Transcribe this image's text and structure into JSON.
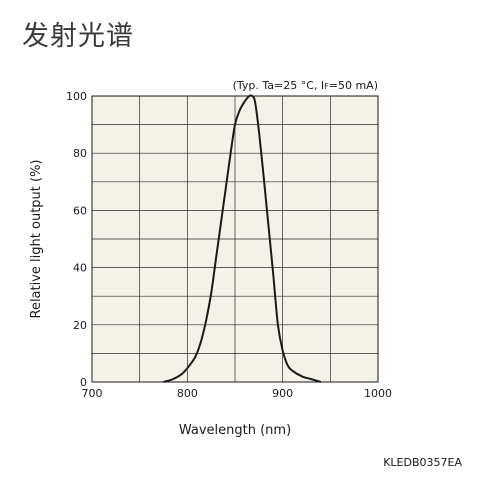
{
  "page": {
    "title": "发射光谱",
    "figure_code": "KLEDB0357EA"
  },
  "chart_data": {
    "type": "line",
    "title": "发射光谱",
    "annotation": {
      "prefix": "(Typ. Ta=25 °C, I",
      "sub": "F",
      "suffix": "=50 mA)"
    },
    "xlabel": "Wavelength (nm)",
    "ylabel": "Relative light output (%)",
    "xlim": [
      700,
      1000
    ],
    "ylim": [
      0,
      100
    ],
    "xticks": [
      700,
      800,
      900,
      1000
    ],
    "yticks": [
      0,
      20,
      40,
      60,
      80,
      100
    ],
    "x_minor_step": 50,
    "y_minor_step": 10,
    "grid": true,
    "background": "#f3f1e8",
    "line_color": "#1a1a1a",
    "series": [
      {
        "x": [
          775,
          785,
          795,
          805,
          810,
          815,
          820,
          825,
          830,
          835,
          840,
          845,
          850,
          855,
          860,
          865,
          868,
          871,
          875,
          880,
          885,
          890,
          895,
          900,
          905,
          910,
          920,
          930,
          940
        ],
        "values": [
          0,
          1,
          3,
          7,
          10,
          15,
          22,
          31,
          43,
          55,
          67,
          79,
          90,
          95,
          98,
          100,
          100,
          98,
          88,
          72,
          55,
          38,
          20,
          11,
          6,
          4,
          2,
          1,
          0
        ]
      }
    ]
  }
}
